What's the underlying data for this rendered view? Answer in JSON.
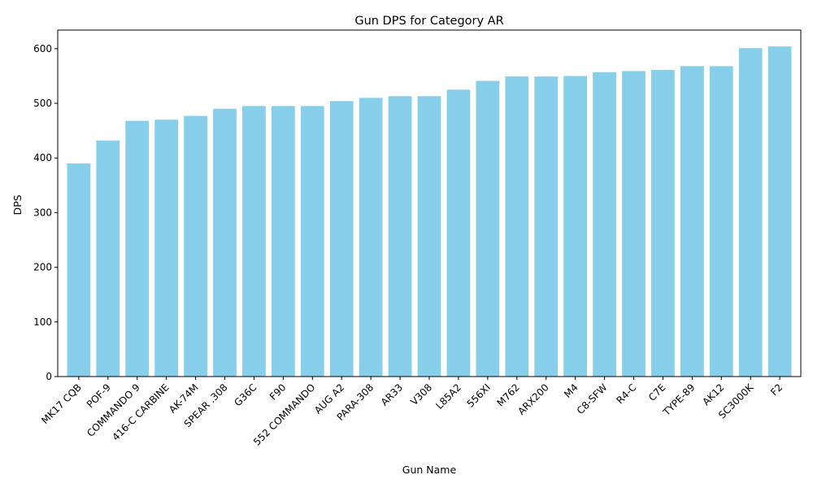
{
  "chart_data": {
    "type": "bar",
    "title": "Gun DPS for Category AR",
    "xlabel": "Gun Name",
    "ylabel": "DPS",
    "categories": [
      "MK17 CQB",
      "POF-9",
      "COMMANDO 9",
      "416-C CARBINE",
      "AK-74M",
      "SPEAR .308",
      "G36C",
      "F90",
      "552 COMMANDO",
      "AUG A2",
      "PARA-308",
      "AR33",
      "V308",
      "L85A2",
      "556XI",
      "M762",
      "ARX200",
      "M4",
      "C8-SFW",
      "R4-C",
      "C7E",
      "TYPE-89",
      "AK12",
      "SC3000K",
      "F2"
    ],
    "values": [
      390,
      432,
      468,
      470,
      477,
      490,
      495,
      495,
      495,
      504,
      510,
      513,
      513,
      525,
      541,
      549,
      549,
      550,
      557,
      559,
      561,
      568,
      568,
      601,
      604
    ],
    "ylim": [
      0,
      634
    ],
    "yticks": [
      0,
      100,
      200,
      300,
      400,
      500,
      600
    ],
    "bar_color": "#87ceeb",
    "grid": false,
    "legend": "none"
  }
}
